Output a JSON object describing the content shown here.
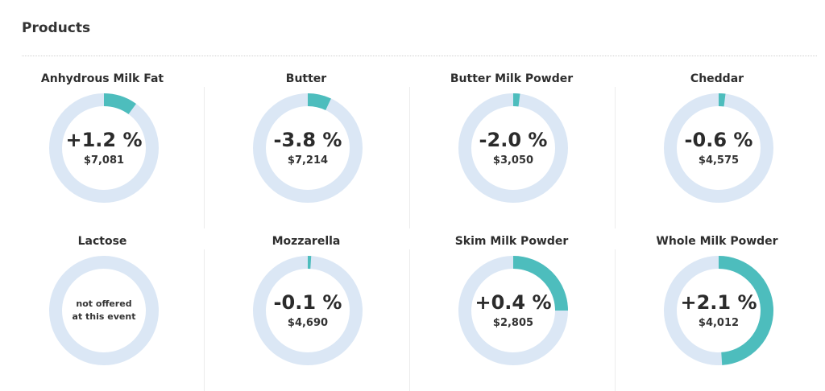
{
  "section": {
    "title": "Products"
  },
  "colors": {
    "track": "#dbe7f5",
    "accent": "#4dbdbd"
  },
  "chart_data": {
    "type": "pie",
    "products": [
      {
        "name": "Anhydrous Milk Fat",
        "change": "+1.2 %",
        "change_value": 1.2,
        "price": "$7,081",
        "offered": true
      },
      {
        "name": "Butter",
        "change": "-3.8 %",
        "change_value": -3.8,
        "price": "$7,214",
        "offered": true
      },
      {
        "name": "Butter Milk Powder",
        "change": "-2.0 %",
        "change_value": -2.0,
        "price": "$3,050",
        "offered": true
      },
      {
        "name": "Cheddar",
        "change": "-0.6 %",
        "change_value": -0.6,
        "price": "$4,575",
        "offered": true
      },
      {
        "name": "Lactose",
        "change": "",
        "change_value": null,
        "price": "",
        "offered": false,
        "note": "not offered\nat this event"
      },
      {
        "name": "Mozzarella",
        "change": "-0.1 %",
        "change_value": -0.1,
        "price": "$4,690",
        "offered": true
      },
      {
        "name": "Skim Milk Powder",
        "change": "+0.4 %",
        "change_value": 0.4,
        "price": "$2,805",
        "offered": true
      },
      {
        "name": "Whole Milk Powder",
        "change": "+2.1 %",
        "change_value": 2.1,
        "price": "$4,012",
        "offered": true
      }
    ],
    "arc_fraction": [
      0.1,
      0.07,
      0.02,
      0.02,
      0,
      0.01,
      0.25,
      0.49
    ]
  }
}
